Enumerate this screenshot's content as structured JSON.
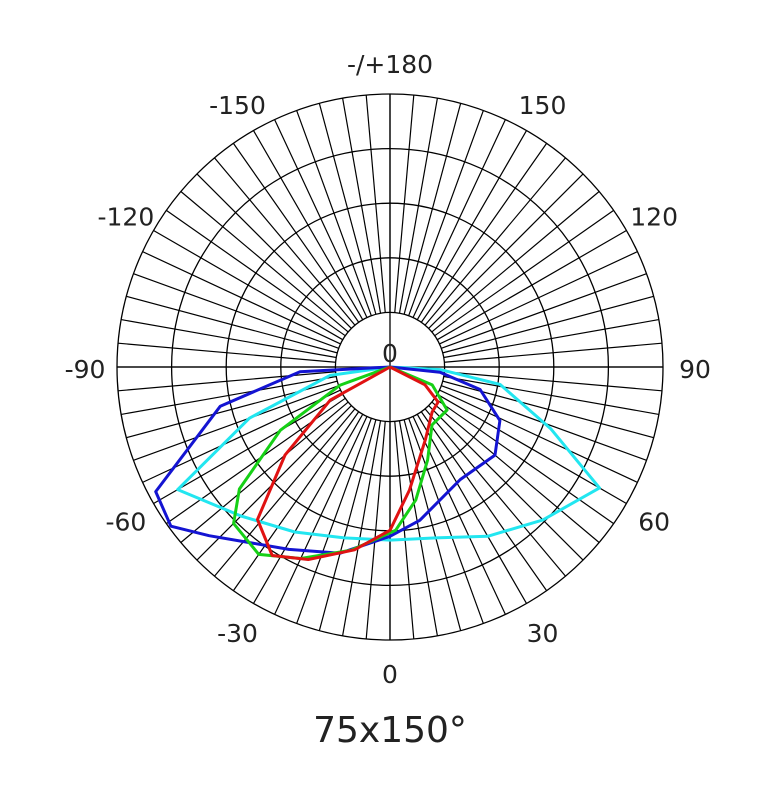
{
  "chart_data": {
    "type": "polar",
    "title": "75x150°",
    "rlim": [
      0,
      5
    ],
    "rticks": [
      0,
      {
        "value": 1,
        "label": null
      },
      {
        "value": 2,
        "label": null
      },
      {
        "value": 3,
        "label": null
      },
      {
        "value": 4,
        "label": null
      },
      {
        "value": 5,
        "label": null
      }
    ],
    "thetaticks": [
      0,
      30,
      60,
      90,
      120,
      150,
      {
        "value": 180,
        "label": "-/+180"
      },
      -150,
      -120,
      -90,
      -60,
      -30
    ],
    "spoke_step": 5,
    "grid": true,
    "series": [
      {
        "color": "#22e6f0",
        "theta": [
          -90,
          -82,
          -70,
          -60,
          -45,
          -30,
          -15,
          0,
          15,
          30,
          45,
          60,
          69,
          81,
          87,
          90
        ],
        "values": [
          0,
          1.11,
          2.74,
          4.49,
          3.86,
          3.49,
          3.24,
          3.17,
          3.24,
          3.58,
          3.96,
          4.43,
          3.15,
          2.04,
          0.92,
          0
        ]
      },
      {
        "color": "#1414d2",
        "theta": [
          -90,
          -87,
          -77,
          -62,
          -54,
          -47,
          -29,
          -15,
          0,
          11,
          32,
          50,
          64,
          76,
          84,
          90
        ],
        "values": [
          0,
          1.65,
          3.19,
          4.86,
          4.96,
          4.53,
          3.82,
          3.53,
          3.1,
          2.86,
          2.43,
          2.51,
          2.24,
          1.7,
          0.92,
          0
        ]
      },
      {
        "color": "#16d016",
        "theta": [
          -90,
          -70,
          -60,
          -51,
          -45,
          -35,
          -25,
          -12,
          2,
          11,
          22,
          36,
          53,
          67,
          90
        ],
        "values": [
          0,
          0.97,
          2.32,
          3.55,
          4.05,
          4.19,
          3.87,
          3.43,
          2.99,
          2.48,
          1.84,
          1.31,
          1.31,
          0.84,
          0
        ]
      },
      {
        "color": "#e01212",
        "theta": [
          -90,
          -61,
          -50,
          -41,
          -32,
          -23,
          -11,
          0,
          9,
          26,
          43,
          54,
          63,
          90
        ],
        "values": [
          0,
          1.25,
          2.51,
          3.7,
          4.07,
          3.83,
          3.41,
          2.99,
          2.28,
          1.48,
          1.13,
          1.09,
          0.72,
          0
        ]
      }
    ]
  }
}
